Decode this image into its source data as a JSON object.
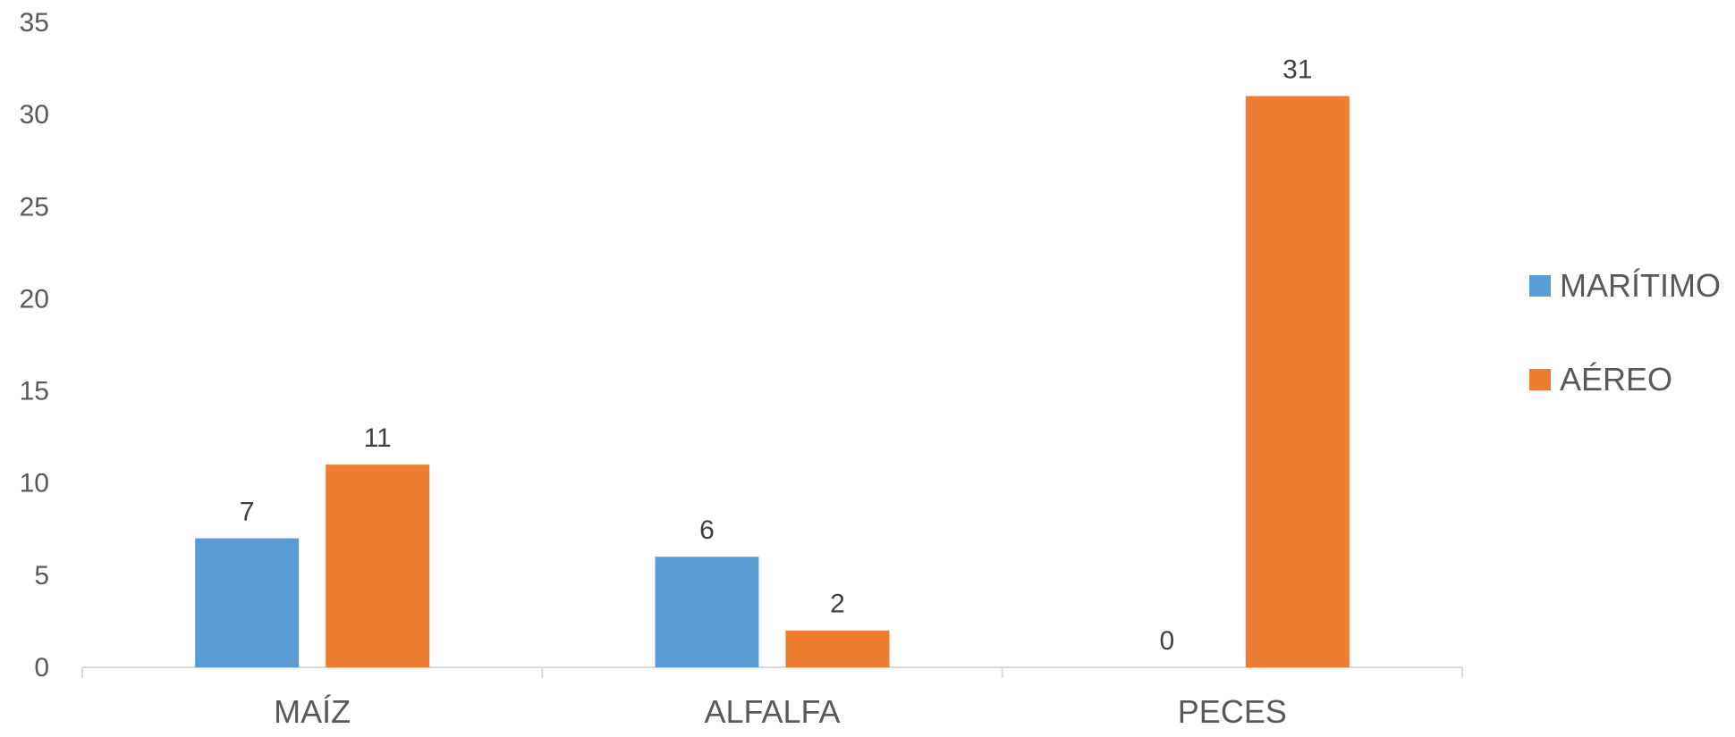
{
  "chart_data": {
    "type": "bar",
    "title": "",
    "xlabel": "",
    "ylabel": "",
    "categories": [
      "MAÍZ",
      "ALFALFA",
      "PECES"
    ],
    "series": [
      {
        "name": "MARÍTIMO",
        "values": [
          7,
          6,
          0
        ],
        "color": "#5b9bd5"
      },
      {
        "name": "AÉREO",
        "values": [
          11,
          2,
          31
        ],
        "color": "#ed7d31"
      }
    ],
    "ylim": [
      0,
      35
    ],
    "yticks": [
      0,
      5,
      10,
      15,
      20,
      25,
      30,
      35
    ],
    "grid": false,
    "legend_position": "right",
    "data_labels": true
  }
}
